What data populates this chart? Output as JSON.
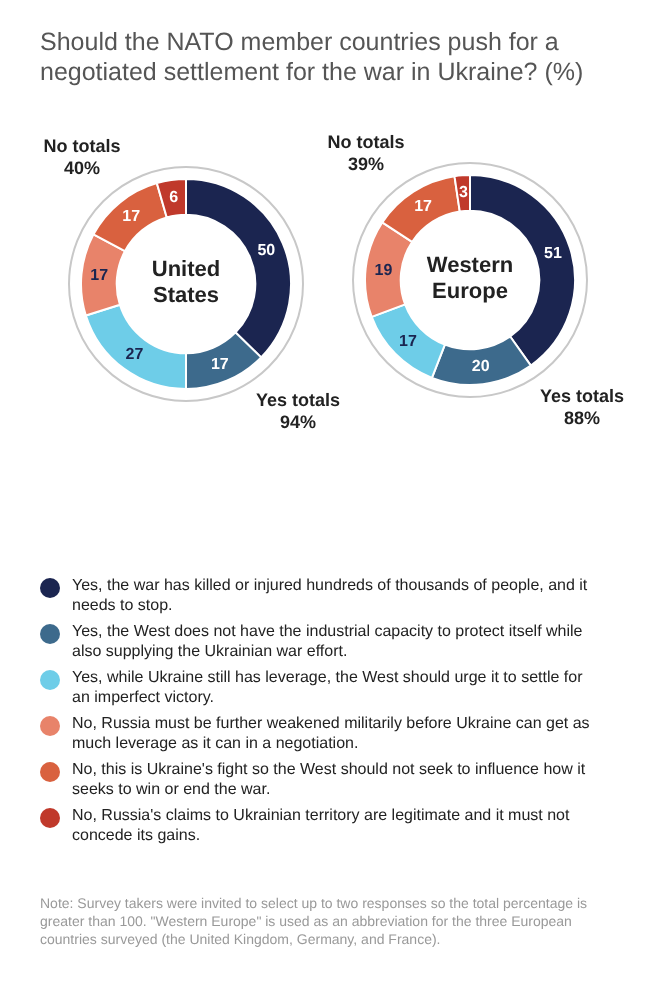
{
  "chart_data": [
    {
      "type": "donut",
      "title": "Should the NATO member countries push for a negotiated settlement for the war in Ukraine? (%)",
      "subtitle": "United States",
      "categories": [
        "Yes, the war has killed or injured hundreds of thousands of people, and it needs to stop.",
        "Yes, the West does not have the industrial capacity to protect itself while also supplying the Ukrainian war effort.",
        "Yes, while Ukraine still has leverage, the West should urge it to settle for an imperfect victory.",
        "No, Russia must be further weakened militarily before Ukraine can get as much leverage as it can in a negotiation.",
        "No, this is Ukraine's fight so the West should not seek to influence how it seeks to win or end the war.",
        "No, Russia's claims to Ukrainian territory are legitimate and it must not concede its gains."
      ],
      "values": [
        50,
        17,
        27,
        17,
        17,
        6
      ],
      "colors": [
        "#1b2550",
        "#3d6a8c",
        "#6ecde8",
        "#e8836a",
        "#d9613f",
        "#c0392b"
      ],
      "data_labels": true,
      "legend": "bottom",
      "annotations": [
        "No totals 40%",
        "Yes totals 94%",
        "Note: Survey takers were invited to select up to two responses so the total percentage is greater than 100. \"Western Europe\" is used as an abbreviation for the three European countries surveyed (the United Kingdom, Germany, and France)."
      ]
    },
    {
      "type": "donut",
      "subtitle": "Western Europe",
      "categories": [
        null,
        null,
        null,
        null,
        null,
        null
      ],
      "values": [
        51,
        20,
        17,
        19,
        17,
        3
      ],
      "colors": [
        "#1b2550",
        "#3d6a8c",
        "#6ecde8",
        "#e8836a",
        "#d9613f",
        "#c0392b"
      ],
      "data_labels": true,
      "annotations": [
        "No totals 39%",
        "Yes totals 88%"
      ]
    }
  ]
}
